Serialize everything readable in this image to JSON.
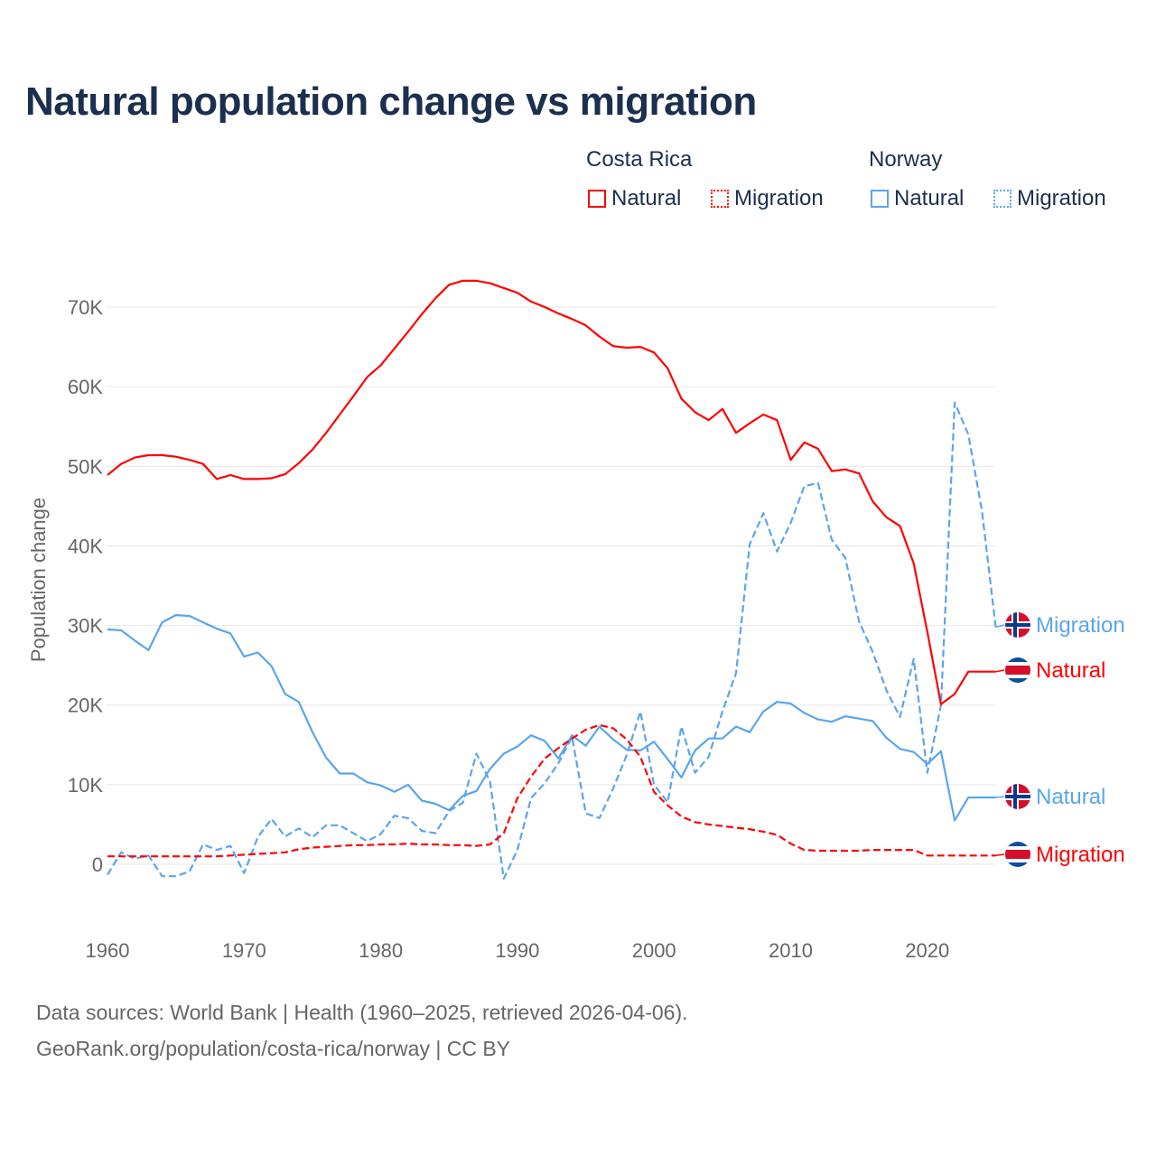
{
  "title": "Natural population change vs migration",
  "legend": {
    "groups": [
      {
        "name": "Costa Rica",
        "items": [
          {
            "label": "Natural",
            "style": "solid",
            "color": "#ff0000"
          },
          {
            "label": "Migration",
            "style": "dotted",
            "color": "#ff0000"
          }
        ]
      },
      {
        "name": "Norway",
        "items": [
          {
            "label": "Natural",
            "style": "solid",
            "color": "#5aa5ec"
          },
          {
            "label": "Migration",
            "style": "dotted",
            "color": "#5aa5ec"
          }
        ]
      }
    ]
  },
  "footer": {
    "line1": "Data sources: World Bank | Health (1960–2025, retrieved 2026-04-06).",
    "line2": "GeoRank.org/population/costa-rica/norway | CC BY"
  },
  "chart_data": {
    "type": "line",
    "title": "Natural population change vs migration",
    "xlabel": "",
    "ylabel": "Population change",
    "xlim": [
      1960,
      2025
    ],
    "ylim": [
      -3000,
      75000
    ],
    "x_ticks": [
      1960,
      1970,
      1980,
      1990,
      2000,
      2010,
      2020
    ],
    "x_tick_labels": [
      "1960",
      "1970",
      "1980",
      "1990",
      "2000",
      "2010",
      "2020"
    ],
    "y_ticks": [
      0,
      10000,
      20000,
      30000,
      40000,
      50000,
      60000,
      70000
    ],
    "y_tick_labels": [
      "0",
      "10K",
      "20K",
      "30K",
      "40K",
      "50K",
      "60K",
      "70K"
    ],
    "grid": true,
    "legend_position": "top-right",
    "x_start": 1960,
    "series": [
      {
        "name": "Costa Rica Natural",
        "country": "Costa Rica",
        "end_label": "Natural",
        "flag": "costa-rica",
        "color": "#ff0000",
        "dashed": false,
        "values": [
          48900,
          50300,
          51100,
          51400,
          51400,
          51200,
          50800,
          50300,
          48400,
          48900,
          48400,
          48400,
          48500,
          49000,
          50400,
          52100,
          54200,
          56500,
          58800,
          61200,
          62700,
          64800,
          66900,
          69100,
          71100,
          72800,
          73300,
          73300,
          73000,
          72400,
          71800,
          70700,
          70000,
          69200,
          68500,
          67700,
          66300,
          65100,
          64900,
          65000,
          64300,
          62300,
          58500,
          56800,
          55800,
          57200,
          54200,
          55400,
          56500,
          55800,
          50800,
          53000,
          52200,
          49400,
          49600,
          49100,
          45600,
          43600,
          42500,
          37800,
          29200,
          20100,
          21400,
          24200,
          24200,
          24200
        ]
      },
      {
        "name": "Costa Rica Migration",
        "country": "Costa Rica",
        "end_label": "Migration",
        "flag": "costa-rica",
        "color": "#ff0000",
        "dashed": true,
        "values": [
          1000,
          1000,
          1000,
          1000,
          1000,
          1000,
          1000,
          1000,
          1000,
          1100,
          1200,
          1300,
          1400,
          1500,
          1900,
          2100,
          2200,
          2300,
          2400,
          2400,
          2500,
          2500,
          2600,
          2500,
          2500,
          2400,
          2400,
          2300,
          2500,
          3900,
          8300,
          11000,
          13300,
          14600,
          15800,
          16900,
          17500,
          17100,
          15700,
          13500,
          9100,
          7400,
          6000,
          5300,
          5000,
          4800,
          4600,
          4400,
          4100,
          3700,
          2600,
          1800,
          1700,
          1700,
          1700,
          1700,
          1800,
          1800,
          1800,
          1800,
          1100,
          1100,
          1100,
          1100,
          1100,
          1100
        ]
      },
      {
        "name": "Norway Natural",
        "country": "Norway",
        "end_label": "Natural",
        "flag": "norway",
        "color": "#5aa5ec",
        "dashed": false,
        "values": [
          29500,
          29400,
          28100,
          26900,
          30400,
          31300,
          31200,
          30400,
          29600,
          29000,
          26100,
          26600,
          24900,
          21400,
          20400,
          16600,
          13400,
          11400,
          11400,
          10300,
          9900,
          9100,
          10000,
          8000,
          7600,
          6800,
          8600,
          9200,
          12000,
          13900,
          14800,
          16200,
          15500,
          13300,
          16200,
          14900,
          17300,
          15700,
          14400,
          14300,
          15400,
          13200,
          10900,
          14300,
          15800,
          15800,
          17300,
          16600,
          19200,
          20400,
          20200,
          19000,
          18200,
          17900,
          18600,
          18300,
          18000,
          15900,
          14500,
          14100,
          12600,
          14200,
          5500,
          8400,
          8400,
          8400
        ]
      },
      {
        "name": "Norway Migration",
        "country": "Norway",
        "end_label": "Migration",
        "flag": "norway",
        "color": "#5aa5ec",
        "dashed": true,
        "values": [
          -1300,
          1500,
          700,
          1100,
          -1500,
          -1500,
          -900,
          2500,
          1800,
          2300,
          -1100,
          3400,
          5700,
          3500,
          4500,
          3400,
          4900,
          4900,
          3900,
          2900,
          3800,
          6100,
          5800,
          4200,
          3900,
          6700,
          7700,
          13900,
          10400,
          -1800,
          1800,
          8300,
          10200,
          12700,
          16000,
          6400,
          5800,
          9500,
          13700,
          19200,
          10000,
          7800,
          17300,
          11500,
          13500,
          19200,
          24000,
          40200,
          44100,
          39300,
          42900,
          47500,
          47900,
          40800,
          38500,
          30500,
          26700,
          21900,
          18500,
          25800,
          11500,
          20000,
          58000,
          54000,
          44400,
          29800
        ]
      }
    ]
  }
}
